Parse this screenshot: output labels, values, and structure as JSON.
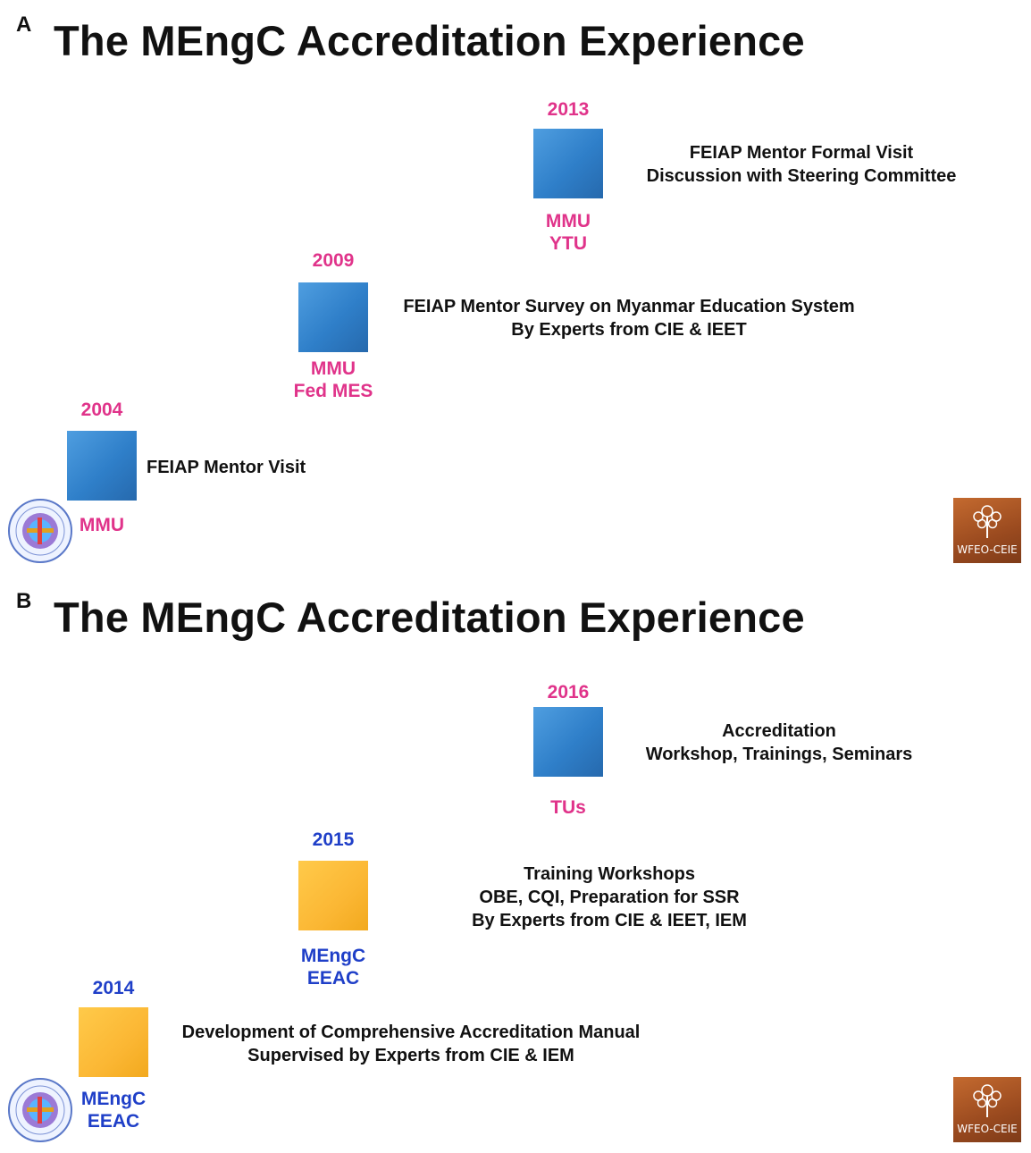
{
  "panels": [
    {
      "letter": "A",
      "title": "The MEngC Accreditation Experience",
      "steps": [
        {
          "year": "2013",
          "box_color": "blue",
          "org": [
            "MMU",
            "YTU"
          ],
          "org_color": "pink",
          "description": [
            "FEIAP Mentor Formal Visit",
            "Discussion with Steering Committee"
          ]
        },
        {
          "year": "2009",
          "box_color": "blue",
          "org": [
            "MMU",
            "Fed MES"
          ],
          "org_color": "pink",
          "description": [
            "FEIAP Mentor Survey on Myanmar Education System",
            "By Experts from CIE & IEET"
          ]
        },
        {
          "year": "2004",
          "box_color": "blue",
          "org": [
            "MMU"
          ],
          "org_color": "pink",
          "description": [
            "FEIAP Mentor Visit"
          ]
        }
      ],
      "logos": {
        "left": "mec-logo",
        "right": "WFEO-CEIE"
      }
    },
    {
      "letter": "B",
      "title": "The MEngC Accreditation Experience",
      "steps": [
        {
          "year": "2016",
          "box_color": "blue",
          "org": [
            "TUs"
          ],
          "org_color": "pink",
          "description": [
            "Accreditation",
            "Workshop, Trainings, Seminars"
          ]
        },
        {
          "year": "2015",
          "box_color": "orange",
          "org": [
            "MEngC",
            "EEAC"
          ],
          "org_color": "navy",
          "description": [
            "Training Workshops",
            "OBE, CQI, Preparation for SSR",
            "By Experts from CIE & IEET, IEM"
          ]
        },
        {
          "year": "2014",
          "box_color": "orange",
          "org": [
            "MEngC",
            "EEAC"
          ],
          "org_color": "navy",
          "description": [
            "Development of Comprehensive Accreditation Manual",
            "Supervised by Experts from CIE & IEM"
          ]
        }
      ],
      "logos": {
        "left": "mec-logo",
        "right": "WFEO-CEIE"
      }
    }
  ],
  "colors": {
    "year_pink": "#e0338a",
    "year_navy": "#1f3fc8",
    "box_blue": "#2f7fc9",
    "box_orange": "#fbb734",
    "wfeo_brown": "#9a4a1f"
  }
}
